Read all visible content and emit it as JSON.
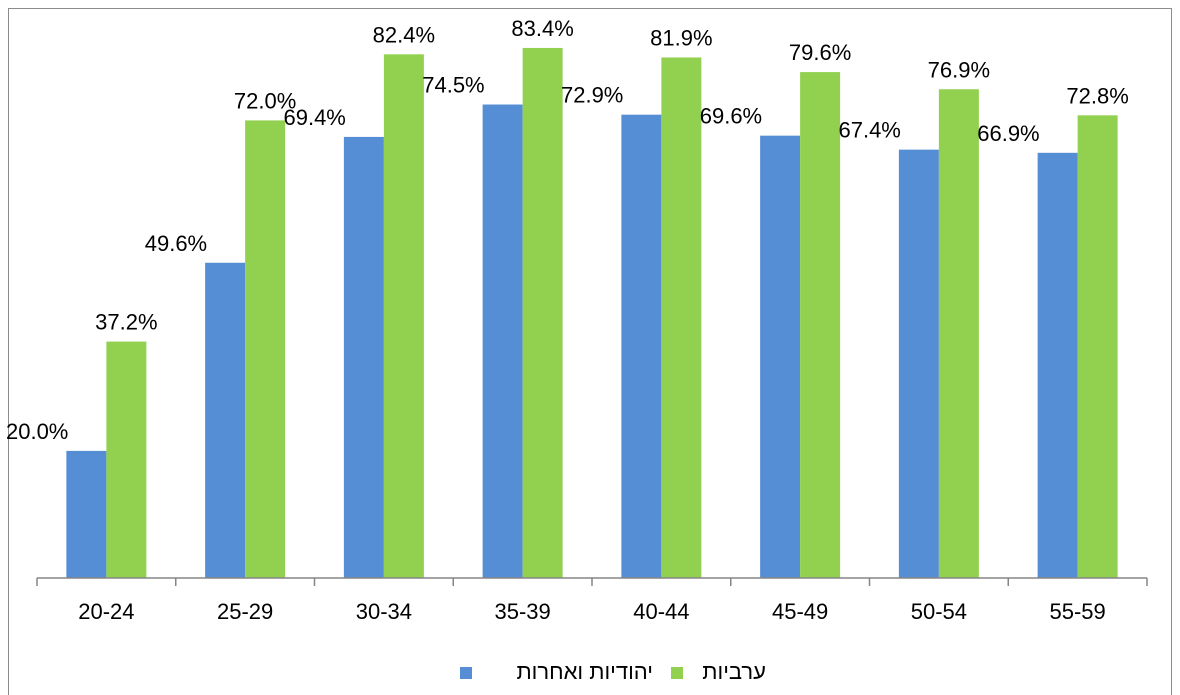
{
  "chart_data": {
    "type": "bar",
    "categories": [
      "20-24",
      "25-29",
      "30-34",
      "35-39",
      "40-44",
      "45-49",
      "50-54",
      "55-59"
    ],
    "series": [
      {
        "name": "יהודיות ואחרות",
        "color": "#558ed5",
        "values": [
          20.0,
          49.6,
          69.4,
          74.5,
          72.9,
          69.6,
          67.4,
          66.9
        ],
        "labels": [
          "20.0%",
          "49.6%",
          "69.4%",
          "74.5%",
          "72.9%",
          "69.6%",
          "67.4%",
          "66.9%"
        ]
      },
      {
        "name": "ערביות",
        "color": "#92d050",
        "values": [
          37.2,
          72.0,
          82.4,
          83.4,
          81.9,
          79.6,
          76.9,
          72.8
        ],
        "labels": [
          "37.2%",
          "72.0%",
          "82.4%",
          "83.4%",
          "81.9%",
          "79.6%",
          "76.9%",
          "72.8%"
        ]
      }
    ],
    "title": "",
    "xlabel": "",
    "ylabel": "",
    "ylim": [
      0,
      90
    ],
    "grid": false,
    "legend_position": "bottom"
  }
}
